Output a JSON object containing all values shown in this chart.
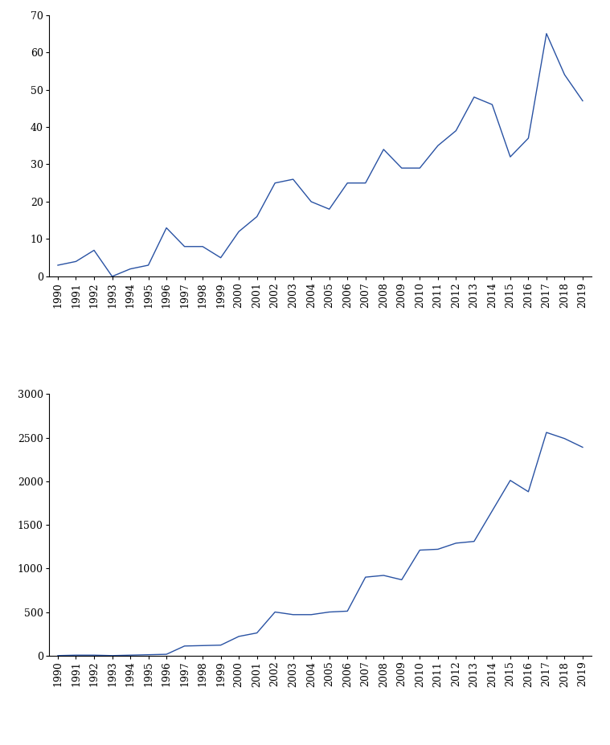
{
  "years": [
    1990,
    1991,
    1992,
    1993,
    1994,
    1995,
    1996,
    1997,
    1998,
    1999,
    2000,
    2001,
    2002,
    2003,
    2004,
    2005,
    2006,
    2007,
    2008,
    2009,
    2010,
    2011,
    2012,
    2013,
    2014,
    2015,
    2016,
    2017,
    2018,
    2019
  ],
  "publications": [
    3,
    4,
    7,
    0,
    2,
    3,
    13,
    8,
    8,
    5,
    12,
    16,
    25,
    26,
    20,
    18,
    25,
    25,
    34,
    29,
    29,
    35,
    39,
    48,
    46,
    32,
    37,
    65,
    54,
    47
  ],
  "citations": [
    0,
    5,
    5,
    0,
    5,
    10,
    15,
    110,
    115,
    120,
    220,
    260,
    500,
    470,
    470,
    500,
    510,
    900,
    920,
    870,
    1210,
    1220,
    1290,
    1310,
    1660,
    2010,
    1880,
    2560,
    2490,
    2390
  ],
  "line_color": "#2952a3",
  "pub_ylim": [
    0,
    70
  ],
  "pub_yticks": [
    0,
    10,
    20,
    30,
    40,
    50,
    60,
    70
  ],
  "cit_ylim": [
    0,
    3000
  ],
  "cit_yticks": [
    0,
    500,
    1000,
    1500,
    2000,
    2500,
    3000
  ],
  "background_color": "#ffffff",
  "tick_fontsize": 9,
  "linewidth": 1.0
}
